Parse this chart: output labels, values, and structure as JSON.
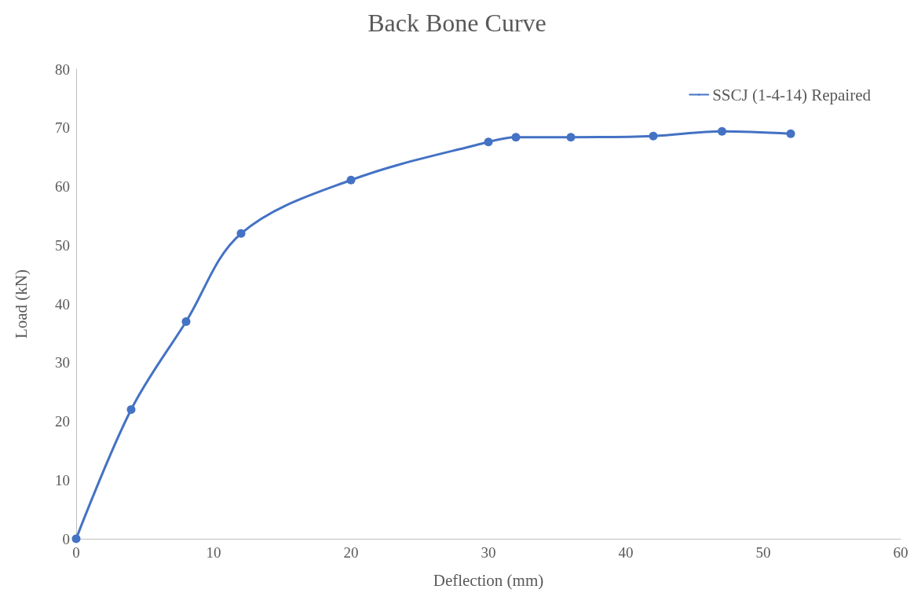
{
  "chart_data": {
    "type": "line",
    "title": "Back Bone Curve",
    "xlabel": "Deflection (mm)",
    "ylabel": "Load (kN)",
    "series": [
      {
        "name": "SSCJ (1-4-14) Repaired",
        "color": "#4472c4",
        "x": [
          0,
          4,
          8,
          12,
          20,
          30,
          32,
          36,
          42,
          47,
          52
        ],
        "values": [
          0,
          22,
          37,
          52,
          61.1,
          67.6,
          68.4,
          68.4,
          68.6,
          69.4,
          69
        ]
      }
    ],
    "xlim": [
      0,
      60
    ],
    "xticks": [
      0,
      10,
      20,
      30,
      40,
      50,
      60
    ],
    "ylim": [
      0,
      80
    ],
    "yticks": [
      0,
      10,
      20,
      30,
      40,
      50,
      60,
      70,
      80
    ],
    "grid": false,
    "legend": "top right",
    "marker": "circle",
    "line_style": "solid"
  }
}
